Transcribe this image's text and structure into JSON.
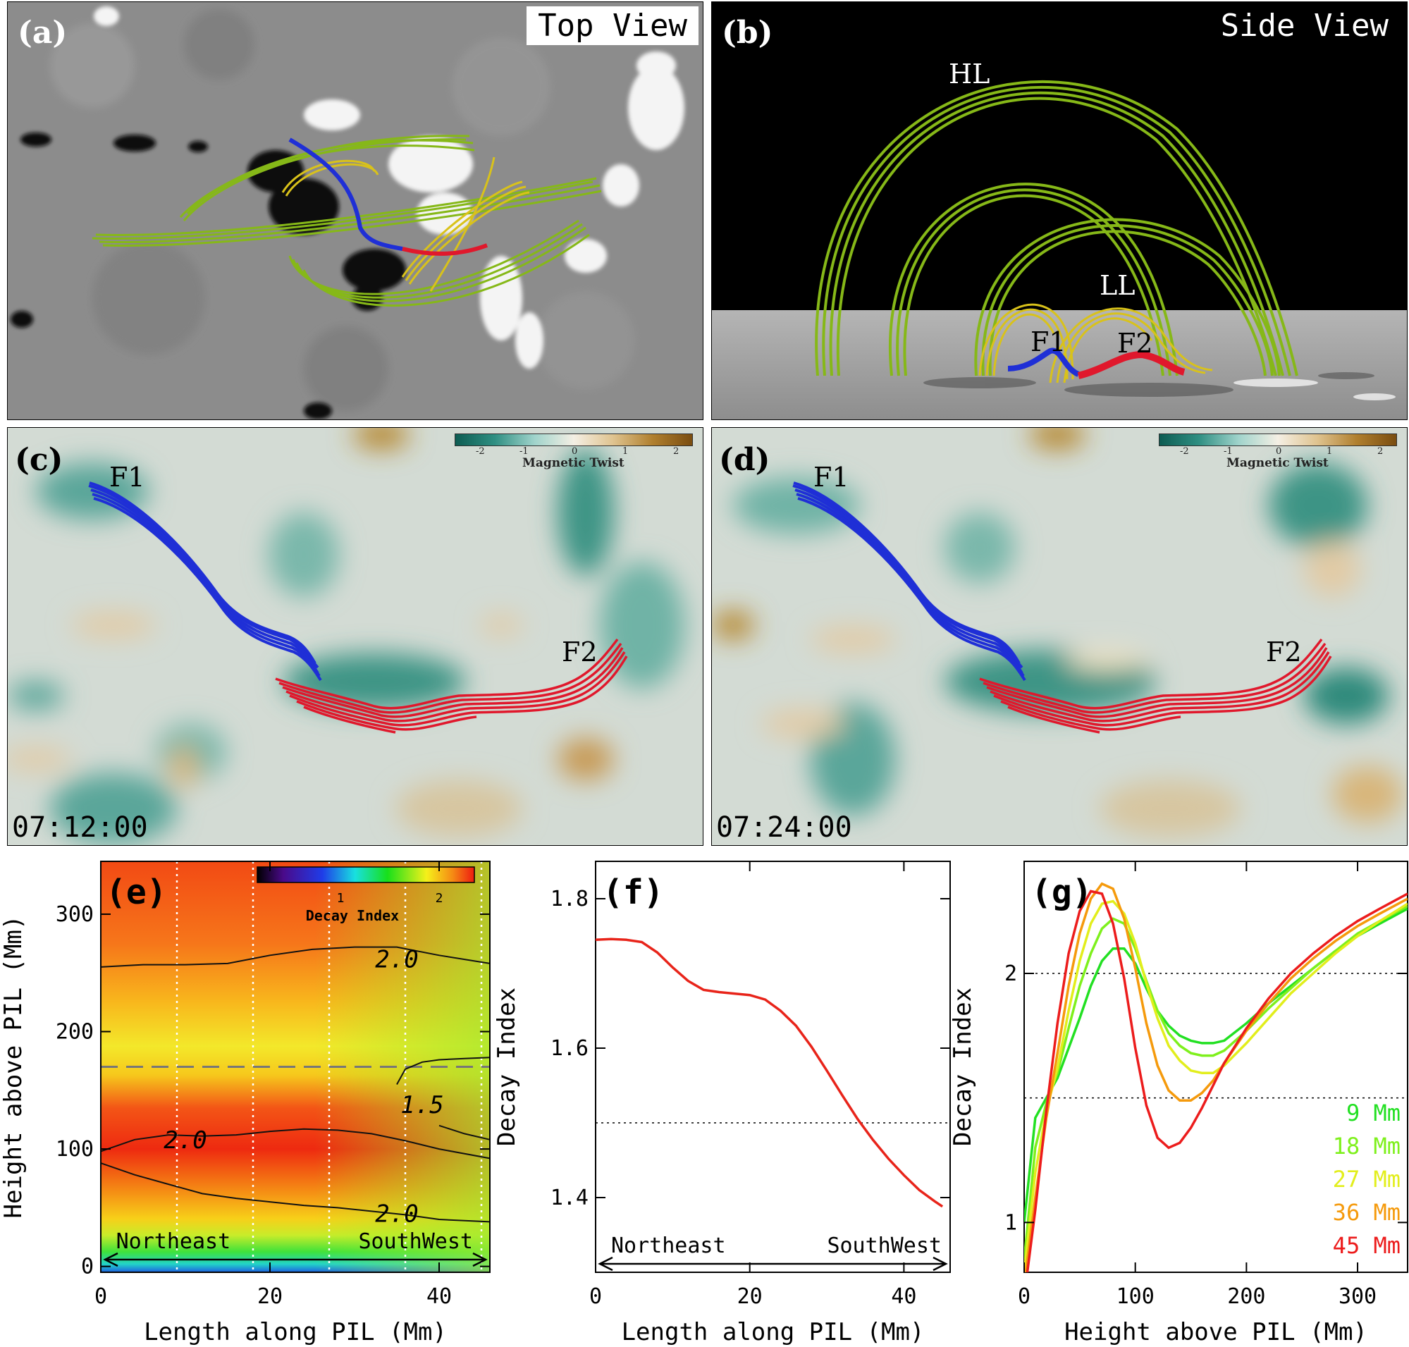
{
  "panel_a": {
    "label": "(a)",
    "view": "Top View"
  },
  "panel_b": {
    "label": "(b)",
    "view": "Side View",
    "loop_high": "HL",
    "loop_low": "LL",
    "flux1": "F1",
    "flux2": "F2"
  },
  "panel_c": {
    "label": "(c)",
    "flux1": "F1",
    "flux2": "F2",
    "time": "07:12:00",
    "colorbar": {
      "title": "Magnetic Twist",
      "ticks": [
        "-2",
        "-1",
        "0",
        "1",
        "2"
      ]
    }
  },
  "panel_d": {
    "label": "(d)",
    "flux1": "F1",
    "flux2": "F2",
    "time": "07:24:00",
    "colorbar": {
      "title": "Magnetic Twist",
      "ticks": [
        "-2",
        "-1",
        "0",
        "1",
        "2"
      ]
    }
  },
  "colors": {
    "f1": "#1f2fd6",
    "f2": "#e0182c",
    "hl": "#8fc21a",
    "ll": "#d8c21c"
  },
  "chart_data": [
    {
      "panel": "(e)",
      "type": "heatmap",
      "xlabel": "Length along PIL (Mm)",
      "ylabel": "Height above PIL (Mm)",
      "xlim": [
        0,
        46
      ],
      "ylim": [
        -5,
        345
      ],
      "xticks": [
        "0",
        "20",
        "40"
      ],
      "yticks": [
        "0",
        "100",
        "200",
        "300"
      ],
      "colorbar": {
        "title": "Decay Index",
        "ticks": [
          "1",
          "2"
        ],
        "range": [
          0,
          2.5
        ]
      },
      "dashed_line_height": 170,
      "vertical_dotted_x": [
        9,
        18,
        27,
        36,
        45
      ],
      "contours": [
        {
          "label": "2.0",
          "x": [
            0,
            5,
            10,
            15,
            20,
            25,
            30,
            35,
            40,
            46
          ],
          "y": [
            255,
            257,
            257,
            258,
            265,
            270,
            272,
            272,
            265,
            258
          ]
        },
        {
          "label": "2.0",
          "x": [
            0,
            4,
            8,
            12,
            16,
            20,
            24,
            28,
            32,
            36,
            40,
            46
          ],
          "y": [
            98,
            108,
            112,
            111,
            112,
            115,
            117,
            116,
            113,
            107,
            100,
            92
          ]
        },
        {
          "label": "2.0",
          "x": [
            0,
            4,
            8,
            12,
            16,
            20,
            24,
            28,
            32,
            36,
            40,
            46
          ],
          "y": [
            88,
            78,
            70,
            62,
            58,
            55,
            52,
            50,
            47,
            44,
            40,
            38
          ]
        },
        {
          "label": "1.5",
          "x": [
            35,
            36,
            38,
            40,
            43,
            46
          ],
          "y": [
            155,
            168,
            174,
            176,
            177,
            178
          ]
        },
        {
          "label": "1.5",
          "x": [
            40,
            43,
            46
          ],
          "y": [
            120,
            113,
            108
          ]
        }
      ],
      "annotations": [
        "Northeast",
        "SouthWest",
        "2.0",
        "2.0",
        "2.0",
        "1.5"
      ]
    },
    {
      "panel": "(f)",
      "type": "line",
      "xlabel": "Length along PIL (Mm)",
      "ylabel": "Decay Index",
      "xlim": [
        0,
        46
      ],
      "ylim": [
        1.3,
        1.85
      ],
      "xticks": [
        "0",
        "20",
        "40"
      ],
      "yticks": [
        "1.4",
        "1.6",
        "1.8"
      ],
      "reference_line": 1.5,
      "series": [
        {
          "color": "#e8241a",
          "x": [
            0,
            2,
            4,
            6,
            8,
            10,
            12,
            14,
            16,
            18,
            20,
            22,
            24,
            26,
            28,
            30,
            32,
            34,
            36,
            38,
            40,
            42,
            44,
            45
          ],
          "y": [
            1.745,
            1.746,
            1.745,
            1.742,
            1.728,
            1.708,
            1.69,
            1.678,
            1.675,
            1.673,
            1.671,
            1.665,
            1.65,
            1.63,
            1.602,
            1.57,
            1.537,
            1.505,
            1.477,
            1.452,
            1.43,
            1.41,
            1.395,
            1.388
          ]
        }
      ],
      "annotations": [
        "Northeast",
        "SouthWest"
      ]
    },
    {
      "panel": "(g)",
      "type": "line",
      "xlabel": "Height above PIL (Mm)",
      "ylabel": "Decay Index",
      "xlim": [
        0,
        345
      ],
      "ylim": [
        0.8,
        2.45
      ],
      "xticks": [
        "0",
        "100",
        "200",
        "300"
      ],
      "yticks": [
        "1",
        "2"
      ],
      "reference_lines": [
        1.5,
        2.0
      ],
      "x": [
        0,
        10,
        20,
        30,
        40,
        50,
        60,
        70,
        80,
        90,
        100,
        110,
        120,
        130,
        140,
        150,
        160,
        170,
        180,
        200,
        220,
        240,
        260,
        280,
        300,
        320,
        345
      ],
      "series": [
        {
          "name": "9 Mm",
          "color": "#22e022",
          "values": [
            1.0,
            1.42,
            1.5,
            1.58,
            1.7,
            1.82,
            1.95,
            2.05,
            2.1,
            2.1,
            2.04,
            1.94,
            1.85,
            1.79,
            1.75,
            1.73,
            1.72,
            1.72,
            1.73,
            1.8,
            1.88,
            1.95,
            2.02,
            2.09,
            2.15,
            2.2,
            2.26
          ]
        },
        {
          "name": "18 Mm",
          "color": "#7ef01c",
          "values": [
            0.85,
            1.3,
            1.48,
            1.6,
            1.78,
            1.95,
            2.08,
            2.18,
            2.22,
            2.2,
            2.1,
            1.97,
            1.85,
            1.76,
            1.71,
            1.68,
            1.67,
            1.67,
            1.69,
            1.77,
            1.86,
            1.94,
            2.02,
            2.09,
            2.16,
            2.21,
            2.27
          ]
        },
        {
          "name": "27 Mm",
          "color": "#e2ee1c",
          "values": [
            0.8,
            1.2,
            1.45,
            1.62,
            1.85,
            2.05,
            2.2,
            2.28,
            2.29,
            2.24,
            2.12,
            1.96,
            1.82,
            1.71,
            1.65,
            1.61,
            1.6,
            1.6,
            1.63,
            1.72,
            1.82,
            1.92,
            2.0,
            2.08,
            2.15,
            2.21,
            2.28
          ]
        },
        {
          "name": "36 Mm",
          "color": "#f59a0c",
          "values": [
            0.75,
            1.1,
            1.42,
            1.68,
            1.95,
            2.16,
            2.3,
            2.36,
            2.34,
            2.22,
            2.02,
            1.8,
            1.63,
            1.53,
            1.49,
            1.49,
            1.52,
            1.57,
            1.64,
            1.77,
            1.88,
            1.98,
            2.06,
            2.13,
            2.19,
            2.24,
            2.3
          ]
        },
        {
          "name": "45 Mm",
          "color": "#ec1c1c",
          "values": [
            0.7,
            1.05,
            1.45,
            1.8,
            2.08,
            2.25,
            2.33,
            2.32,
            2.2,
            1.98,
            1.7,
            1.47,
            1.34,
            1.3,
            1.32,
            1.38,
            1.46,
            1.55,
            1.64,
            1.78,
            1.9,
            2.0,
            2.08,
            2.15,
            2.21,
            2.26,
            2.32
          ]
        }
      ],
      "legend_position": "right"
    }
  ]
}
